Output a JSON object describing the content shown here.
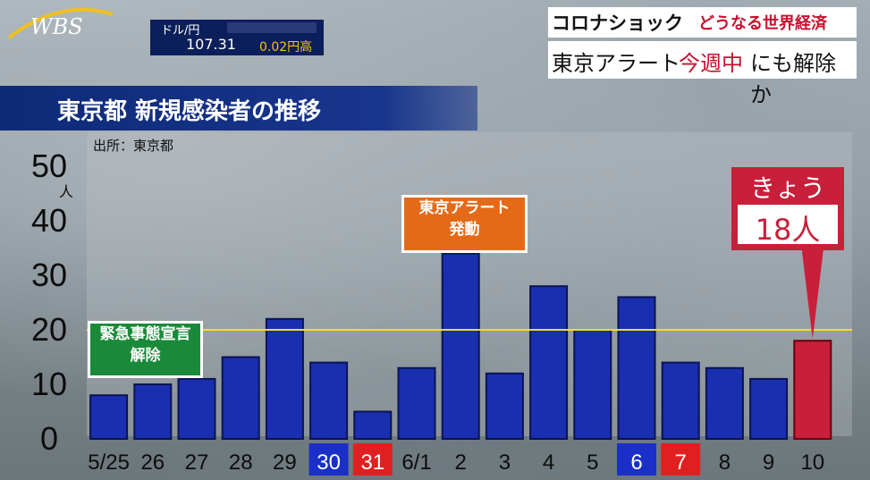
{
  "logo_text": "WBS",
  "fx": {
    "label": "ドル/円",
    "rate": "107.31",
    "change": "0.02円高"
  },
  "headline": {
    "title_a": "コロナショック",
    "title_b": "どうなる世界経済",
    "sub_a": "東京アラート",
    "sub_b": "今週中",
    "sub_c": "にも解除か"
  },
  "chart_title": "東京都 新規感染者の推移",
  "source": "出所：東京都",
  "annotations": {
    "emergency_line1": "緊急事態宣言",
    "emergency_line2": "解除",
    "alert_line1": "東京アラート",
    "alert_line2": "発動",
    "today_label": "きょう",
    "today_value": "18人"
  },
  "colors": {
    "bar": "#1a2fb0",
    "today_bar": "#c8203a",
    "threshold": "#f0e020",
    "sat_tick": "#1a2fc8",
    "sun_tick": "#e02020"
  },
  "chart_data": {
    "type": "bar",
    "categories": [
      "5/25",
      "26",
      "27",
      "28",
      "29",
      "30",
      "31",
      "6/1",
      "2",
      "3",
      "4",
      "5",
      "6",
      "7",
      "8",
      "9",
      "10"
    ],
    "values": [
      8,
      10,
      11,
      15,
      22,
      14,
      5,
      13,
      34,
      12,
      28,
      20,
      26,
      14,
      13,
      11,
      18
    ],
    "tick_style": [
      "normal",
      "normal",
      "normal",
      "normal",
      "normal",
      "sat",
      "sun",
      "normal",
      "normal",
      "normal",
      "normal",
      "normal",
      "sat",
      "sun",
      "normal",
      "normal",
      "normal"
    ],
    "highlight_index": 16,
    "y_ticks": [
      0,
      10,
      20,
      30,
      40,
      50
    ],
    "ylim": [
      0,
      55
    ],
    "yunit": "人",
    "threshold": 20
  }
}
